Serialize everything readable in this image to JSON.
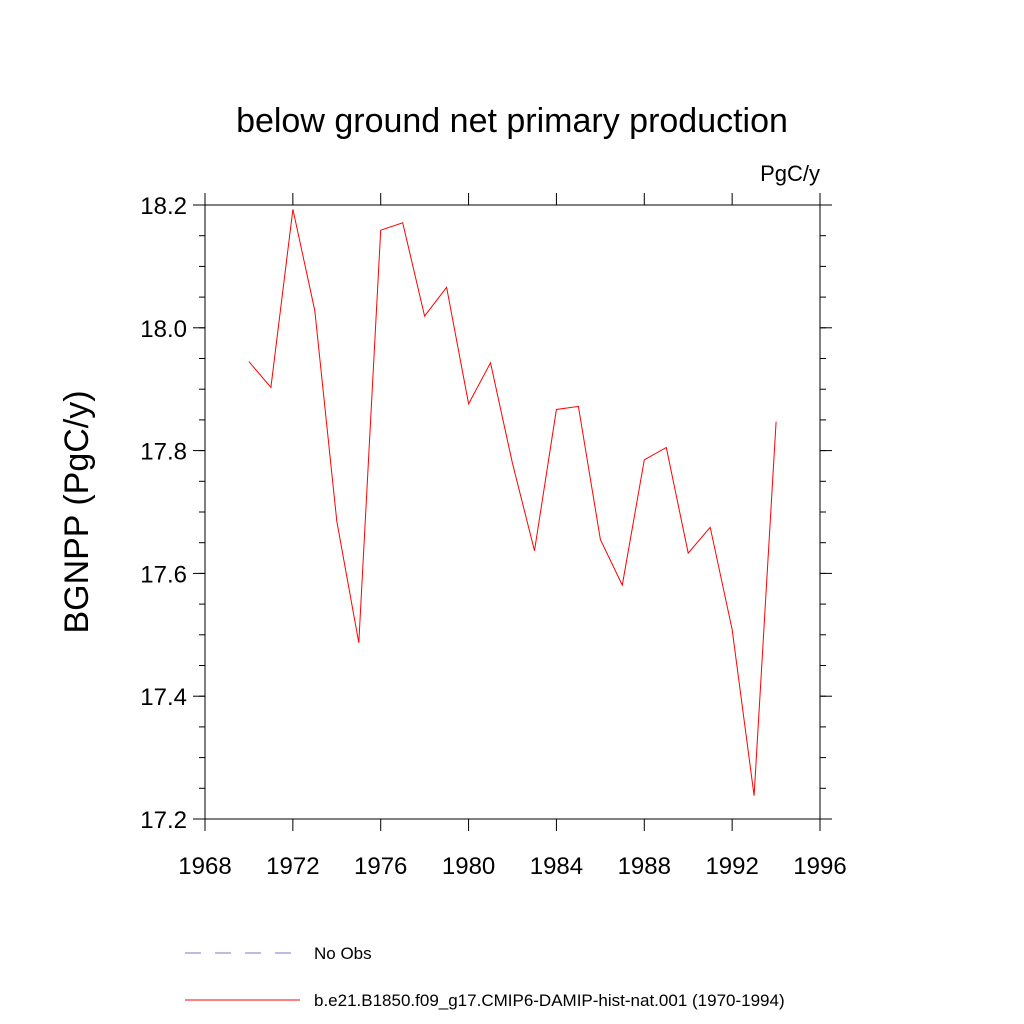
{
  "chart_data": {
    "type": "line",
    "title": "below ground net primary production",
    "units": "PgC/y",
    "ylabel": "BGNPP  (PgC/y)",
    "xlabel": "",
    "xlim": [
      1968,
      1996
    ],
    "ylim": [
      17.2,
      18.2
    ],
    "xticks": [
      1968,
      1972,
      1976,
      1980,
      1984,
      1988,
      1992,
      1996
    ],
    "xtick_labels": [
      "1968",
      "1972",
      "1976",
      "1980",
      "1984",
      "1988",
      "1992",
      "1996"
    ],
    "yticks": [
      17.2,
      17.4,
      17.6,
      17.8,
      18.0,
      18.2
    ],
    "ytick_labels": [
      "17.2",
      "17.4",
      "17.6",
      "17.8",
      "18.0",
      "18.2"
    ],
    "grid": false,
    "legend_position": "bottom",
    "series": [
      {
        "name": "b.e21.B1850.f09_g17.CMIP6-DAMIP-hist-nat.001 (1970-1994)",
        "color": "#ff0000",
        "style": "solid",
        "x": [
          1970,
          1971,
          1972,
          1973,
          1974,
          1975,
          1976,
          1977,
          1978,
          1979,
          1980,
          1981,
          1982,
          1983,
          1984,
          1985,
          1986,
          1987,
          1988,
          1989,
          1990,
          1991,
          1992,
          1993,
          1994
        ],
        "values": [
          17.945,
          17.903,
          18.193,
          18.028,
          17.685,
          17.487,
          18.159,
          18.171,
          18.019,
          18.066,
          17.876,
          17.943,
          17.779,
          17.637,
          17.867,
          17.872,
          17.655,
          17.581,
          17.785,
          17.805,
          17.633,
          17.675,
          17.509,
          17.238,
          17.847
        ]
      }
    ],
    "legend": [
      {
        "label": "No Obs",
        "color": "#7777cc",
        "style": "dashed"
      },
      {
        "label": "b.e21.B1850.f09_g17.CMIP6-DAMIP-hist-nat.001 (1970-1994)",
        "color": "#ff0000",
        "style": "solid"
      }
    ]
  }
}
